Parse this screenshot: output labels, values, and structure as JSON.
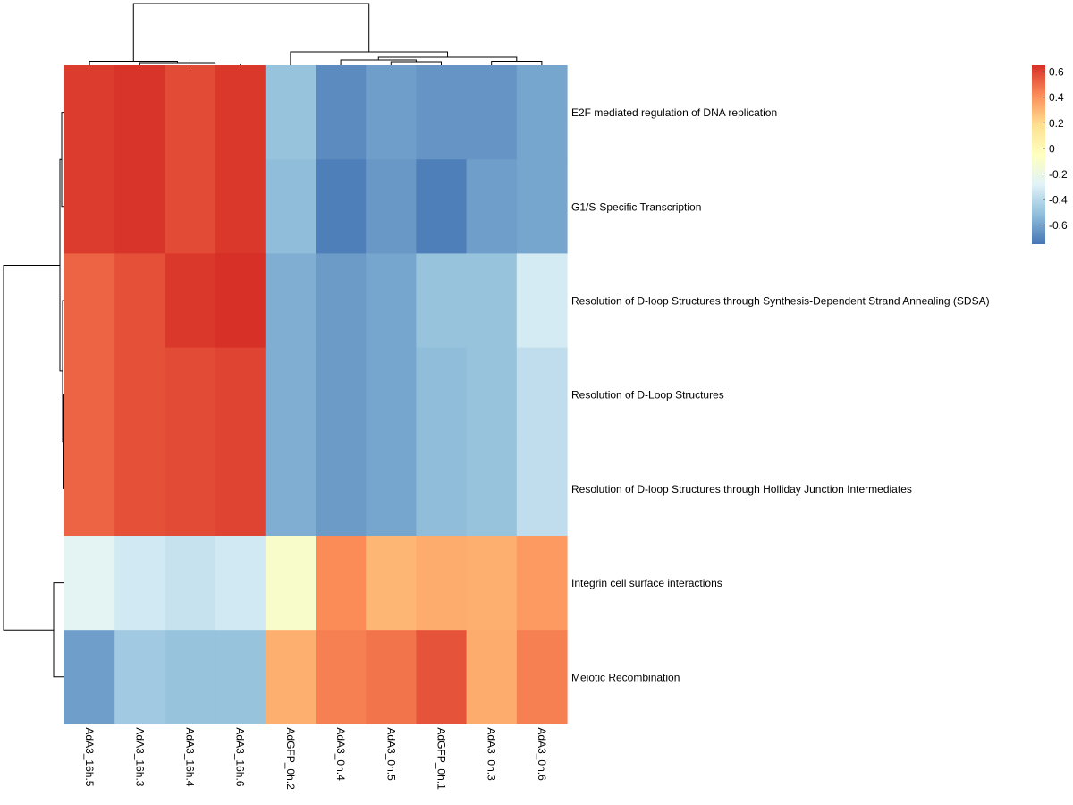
{
  "chart_data": {
    "type": "heatmap",
    "title": "",
    "columns": [
      "AdA3_16h.5",
      "AdA3_16h.3",
      "AdA3_16h.4",
      "AdA3_16h.6",
      "AdGFP_0h.2",
      "AdA3_0h.4",
      "AdA3_0h.5",
      "AdGFP_0h.1",
      "AdA3_0h.3",
      "AdA3_0h.6"
    ],
    "rows": [
      "E2F mediated regulation of DNA replication",
      "G1/S-Specific Transcription",
      "Resolution of D-loop Structures through Synthesis-Dependent Strand Annealing (SDSA)",
      "Resolution of D-Loop Structures",
      "Resolution of D-loop Structures through Holliday Junction Intermediates",
      "Integrin cell surface interactions",
      "Meiotic Recombination"
    ],
    "values": [
      [
        0.62,
        0.64,
        0.58,
        0.63,
        -0.5,
        -0.68,
        -0.62,
        -0.65,
        -0.65,
        -0.6
      ],
      [
        0.62,
        0.64,
        0.58,
        0.63,
        -0.52,
        -0.72,
        -0.64,
        -0.72,
        -0.62,
        -0.6
      ],
      [
        0.52,
        0.57,
        0.63,
        0.66,
        -0.57,
        -0.63,
        -0.6,
        -0.5,
        -0.5,
        -0.32
      ],
      [
        0.52,
        0.57,
        0.58,
        0.6,
        -0.57,
        -0.63,
        -0.6,
        -0.52,
        -0.5,
        -0.38
      ],
      [
        0.52,
        0.57,
        0.58,
        0.6,
        -0.57,
        -0.63,
        -0.6,
        -0.52,
        -0.5,
        -0.38
      ],
      [
        -0.26,
        -0.33,
        -0.36,
        -0.33,
        -0.1,
        0.42,
        0.3,
        0.33,
        0.32,
        0.38
      ],
      [
        -0.62,
        -0.47,
        -0.5,
        -0.5,
        0.32,
        0.45,
        0.48,
        0.56,
        0.33,
        0.45
      ]
    ],
    "legend": {
      "ticks": [
        0.6,
        0.4,
        0.2,
        0,
        -0.2,
        -0.4,
        -0.6
      ],
      "tick_labels": [
        "0.6",
        "0.4",
        "0.2",
        "0",
        "-0.2",
        "-0.4",
        "-0.6"
      ],
      "range": [
        -0.75,
        0.65
      ],
      "colors": [
        "#4575B4",
        "#91BFDB",
        "#E0F3F8",
        "#FFFFBF",
        "#FEE090",
        "#FC8D59",
        "#D73027"
      ],
      "placement": "top-right"
    },
    "column_dendrogram": true,
    "row_dendrogram": true,
    "xlabel": "",
    "ylabel": ""
  }
}
